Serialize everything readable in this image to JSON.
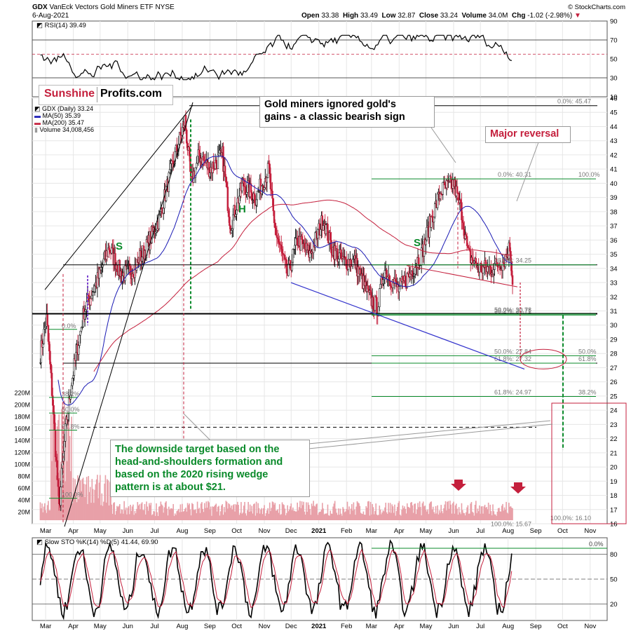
{
  "header": {
    "symbol": "GDX",
    "name": "VanEck Vectors Gold Miners ETF",
    "exchange": "NYSE",
    "date": "6-Aug-2021",
    "open_label": "Open",
    "open": "33.38",
    "high_label": "High",
    "high": "33.49",
    "low_label": "Low",
    "low": "32.87",
    "close_label": "Close",
    "close": "33.24",
    "volume_label": "Volume",
    "volume": "34.0M",
    "chg_label": "Chg",
    "chg": "-1.02 (-2.98%)",
    "credit": "© StockCharts.com"
  },
  "logo": {
    "word1": "Sunshine",
    "word2": "Profits.com"
  },
  "legend": {
    "price": "GDX (Daily) 33.24",
    "ma50": "MA(50) 35.39",
    "ma200": "MA(200) 35.47",
    "volume": "Volume 34,008,456"
  },
  "annotations": {
    "ignored": [
      "Gold miners ignored gold's",
      "gains - a classic bearish sign"
    ],
    "reversal": "Major reversal",
    "target": [
      "The downside target based on the",
      "head-and-shoulders formation and",
      "based on the 2020 rising wedge",
      "pattern is at about $21."
    ],
    "s_left": "S",
    "h": "H",
    "s_right": "S"
  },
  "colors": {
    "price": "#c41f3c",
    "ma50": "#1a1ab4",
    "ma200": "#c41f3c",
    "green": "#0a8a2a",
    "volume": "#e8a0a8",
    "grid": "#e6e6e6"
  },
  "chart_data": [
    {
      "type": "line",
      "title": "RSI(14) 39.49",
      "ylim": [
        10,
        90
      ],
      "yticks": [
        "90",
        "70",
        "50",
        "30",
        "10"
      ],
      "reference_lines": [
        70,
        55,
        30
      ],
      "last_value": 39.49
    },
    {
      "type": "line",
      "title": "GDX (Daily) 33.24",
      "ylim": [
        16,
        46
      ],
      "yticks": [
        "46",
        "45",
        "44",
        "43",
        "42",
        "41",
        "40",
        "39",
        "38",
        "37",
        "36",
        "35",
        "34",
        "33",
        "32",
        "31",
        "30",
        "29",
        "28",
        "27",
        "26",
        "25",
        "24",
        "23",
        "22",
        "21",
        "20",
        "19",
        "18",
        "17",
        "16"
      ],
      "xticks": [
        "Mar",
        "Apr",
        "May",
        "Jun",
        "Jul",
        "Aug",
        "Sep",
        "Oct",
        "Nov",
        "Dec",
        "2021",
        "Feb",
        "Mar",
        "Apr",
        "May",
        "Jun",
        "Jul",
        "Aug",
        "Sep",
        "Oct",
        "Nov"
      ],
      "volume_ticks": [
        "220M",
        "200M",
        "180M",
        "160M",
        "140M",
        "120M",
        "100M",
        "80M",
        "60M",
        "40M",
        "20M"
      ],
      "close_anchors": [
        {
          "x": "2020-02-24",
          "y": 28.0
        },
        {
          "x": "2020-03-02",
          "y": 30.5
        },
        {
          "x": "2020-03-09",
          "y": 24.5
        },
        {
          "x": "2020-03-16",
          "y": 17.0
        },
        {
          "x": "2020-03-23",
          "y": 22.5
        },
        {
          "x": "2020-03-30",
          "y": 26.0
        },
        {
          "x": "2020-04-13",
          "y": 31.0
        },
        {
          "x": "2020-04-27",
          "y": 33.0
        },
        {
          "x": "2020-05-11",
          "y": 35.5
        },
        {
          "x": "2020-05-25",
          "y": 33.5
        },
        {
          "x": "2020-06-08",
          "y": 34.0
        },
        {
          "x": "2020-06-22",
          "y": 35.5
        },
        {
          "x": "2020-07-06",
          "y": 37.5
        },
        {
          "x": "2020-07-20",
          "y": 41.0
        },
        {
          "x": "2020-08-04",
          "y": 44.5
        },
        {
          "x": "2020-08-11",
          "y": 40.0
        },
        {
          "x": "2020-08-20",
          "y": 42.0
        },
        {
          "x": "2020-09-01",
          "y": 41.0
        },
        {
          "x": "2020-09-15",
          "y": 42.0
        },
        {
          "x": "2020-09-24",
          "y": 37.0
        },
        {
          "x": "2020-10-08",
          "y": 40.0
        },
        {
          "x": "2020-10-22",
          "y": 39.0
        },
        {
          "x": "2020-11-06",
          "y": 41.0
        },
        {
          "x": "2020-11-12",
          "y": 37.0
        },
        {
          "x": "2020-11-27",
          "y": 33.5
        },
        {
          "x": "2020-12-08",
          "y": 36.0
        },
        {
          "x": "2020-12-22",
          "y": 35.0
        },
        {
          "x": "2021-01-06",
          "y": 37.5
        },
        {
          "x": "2021-01-15",
          "y": 35.5
        },
        {
          "x": "2021-01-28",
          "y": 34.5
        },
        {
          "x": "2021-02-10",
          "y": 34.5
        },
        {
          "x": "2021-02-26",
          "y": 32.0
        },
        {
          "x": "2021-03-08",
          "y": 31.2
        },
        {
          "x": "2021-03-15",
          "y": 34.0
        },
        {
          "x": "2021-03-31",
          "y": 32.5
        },
        {
          "x": "2021-04-12",
          "y": 33.5
        },
        {
          "x": "2021-04-26",
          "y": 35.0
        },
        {
          "x": "2021-05-07",
          "y": 37.5
        },
        {
          "x": "2021-05-18",
          "y": 39.5
        },
        {
          "x": "2021-06-01",
          "y": 40.0
        },
        {
          "x": "2021-06-10",
          "y": 38.0
        },
        {
          "x": "2021-06-17",
          "y": 35.0
        },
        {
          "x": "2021-06-30",
          "y": 34.0
        },
        {
          "x": "2021-07-12",
          "y": 34.0
        },
        {
          "x": "2021-07-27",
          "y": 34.5
        },
        {
          "x": "2021-08-03",
          "y": 35.5
        },
        {
          "x": "2021-08-06",
          "y": 33.24
        }
      ],
      "ma50_last": 35.39,
      "ma200_last": 35.47,
      "fib_labels_left": [
        "0.0%",
        "38.2%",
        "50.0%",
        "61.8%",
        "100.0%"
      ],
      "fib_labels_right": [
        {
          "label": "0.0%: 45.47",
          "y": 45.47
        },
        {
          "label": "0.0%: 40.31",
          "y": 40.31
        },
        {
          "label": "38.2%: 34.25",
          "y": 34.25
        },
        {
          "label": "38.2%: 30.71",
          "y": 30.71
        },
        {
          "label": "50.0%: 30.78",
          "y": 30.78
        },
        {
          "label": "50.0%: 27.84",
          "y": 27.84
        },
        {
          "label": "61.8%: 27.32",
          "y": 27.32
        },
        {
          "label": "61.8%: 24.97",
          "y": 24.97
        },
        {
          "label": "100.0%: 16.10",
          "y": 16.1
        },
        {
          "label": "100.0%: 15.67",
          "y": 15.67
        }
      ],
      "green_right_labels": [
        "100.0%",
        "38.2%",
        "50.0%",
        "61.8%"
      ],
      "horizontal_levels": [
        34.25,
        30.8,
        27.32,
        22.8
      ]
    },
    {
      "type": "line",
      "title": "Slow STO %K(14) %D(5) 41.44, 69.90",
      "ylim": [
        0,
        100
      ],
      "yticks": [
        "80",
        "50",
        "20"
      ],
      "top_label": "0.0%",
      "series": [
        {
          "name": "%K(14)",
          "last": 41.44
        },
        {
          "name": "%D(5)",
          "last": 69.9
        }
      ]
    }
  ]
}
